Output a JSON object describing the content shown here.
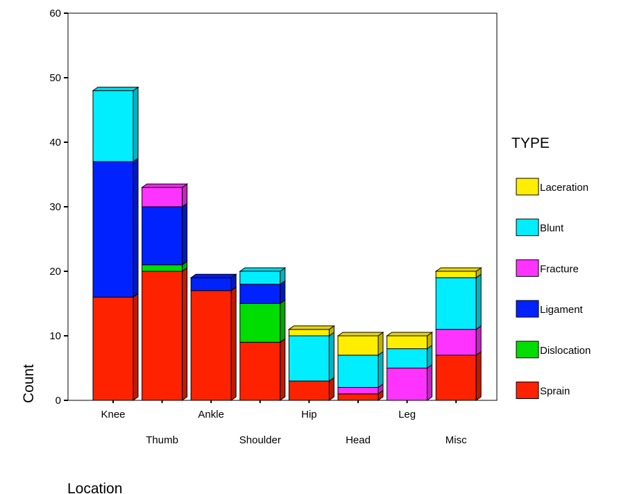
{
  "chart_data": {
    "type": "bar",
    "stacked": true,
    "style": "3d",
    "xlabel": "Location",
    "ylabel": "Count",
    "ylim": [
      0,
      60
    ],
    "yticks": [
      0,
      10,
      20,
      30,
      40,
      50,
      60
    ],
    "grid": false,
    "legend_title": "TYPE",
    "legend_position": "right",
    "categories": [
      "Knee",
      "Thumb",
      "Ankle",
      "Shoulder",
      "Hip",
      "Head",
      "Leg",
      "Misc"
    ],
    "series": [
      {
        "name": "Sprain",
        "color": "#ff2200",
        "values": [
          16,
          20,
          17,
          9,
          3,
          1,
          0,
          7
        ]
      },
      {
        "name": "Dislocation",
        "color": "#00dd00",
        "values": [
          0,
          1,
          0,
          6,
          0,
          0,
          0,
          0
        ]
      },
      {
        "name": "Ligament",
        "color": "#0022ff",
        "values": [
          21,
          9,
          2,
          3,
          0,
          0,
          0,
          0
        ]
      },
      {
        "name": "Fracture",
        "color": "#ff33ff",
        "values": [
          0,
          3,
          0,
          0,
          0,
          1,
          5,
          4
        ]
      },
      {
        "name": "Blunt",
        "color": "#00eeff",
        "values": [
          11,
          0,
          0,
          2,
          7,
          5,
          3,
          8
        ]
      },
      {
        "name": "Laceration",
        "color": "#ffee00",
        "values": [
          0,
          0,
          0,
          0,
          1,
          3,
          2,
          1
        ]
      }
    ]
  }
}
